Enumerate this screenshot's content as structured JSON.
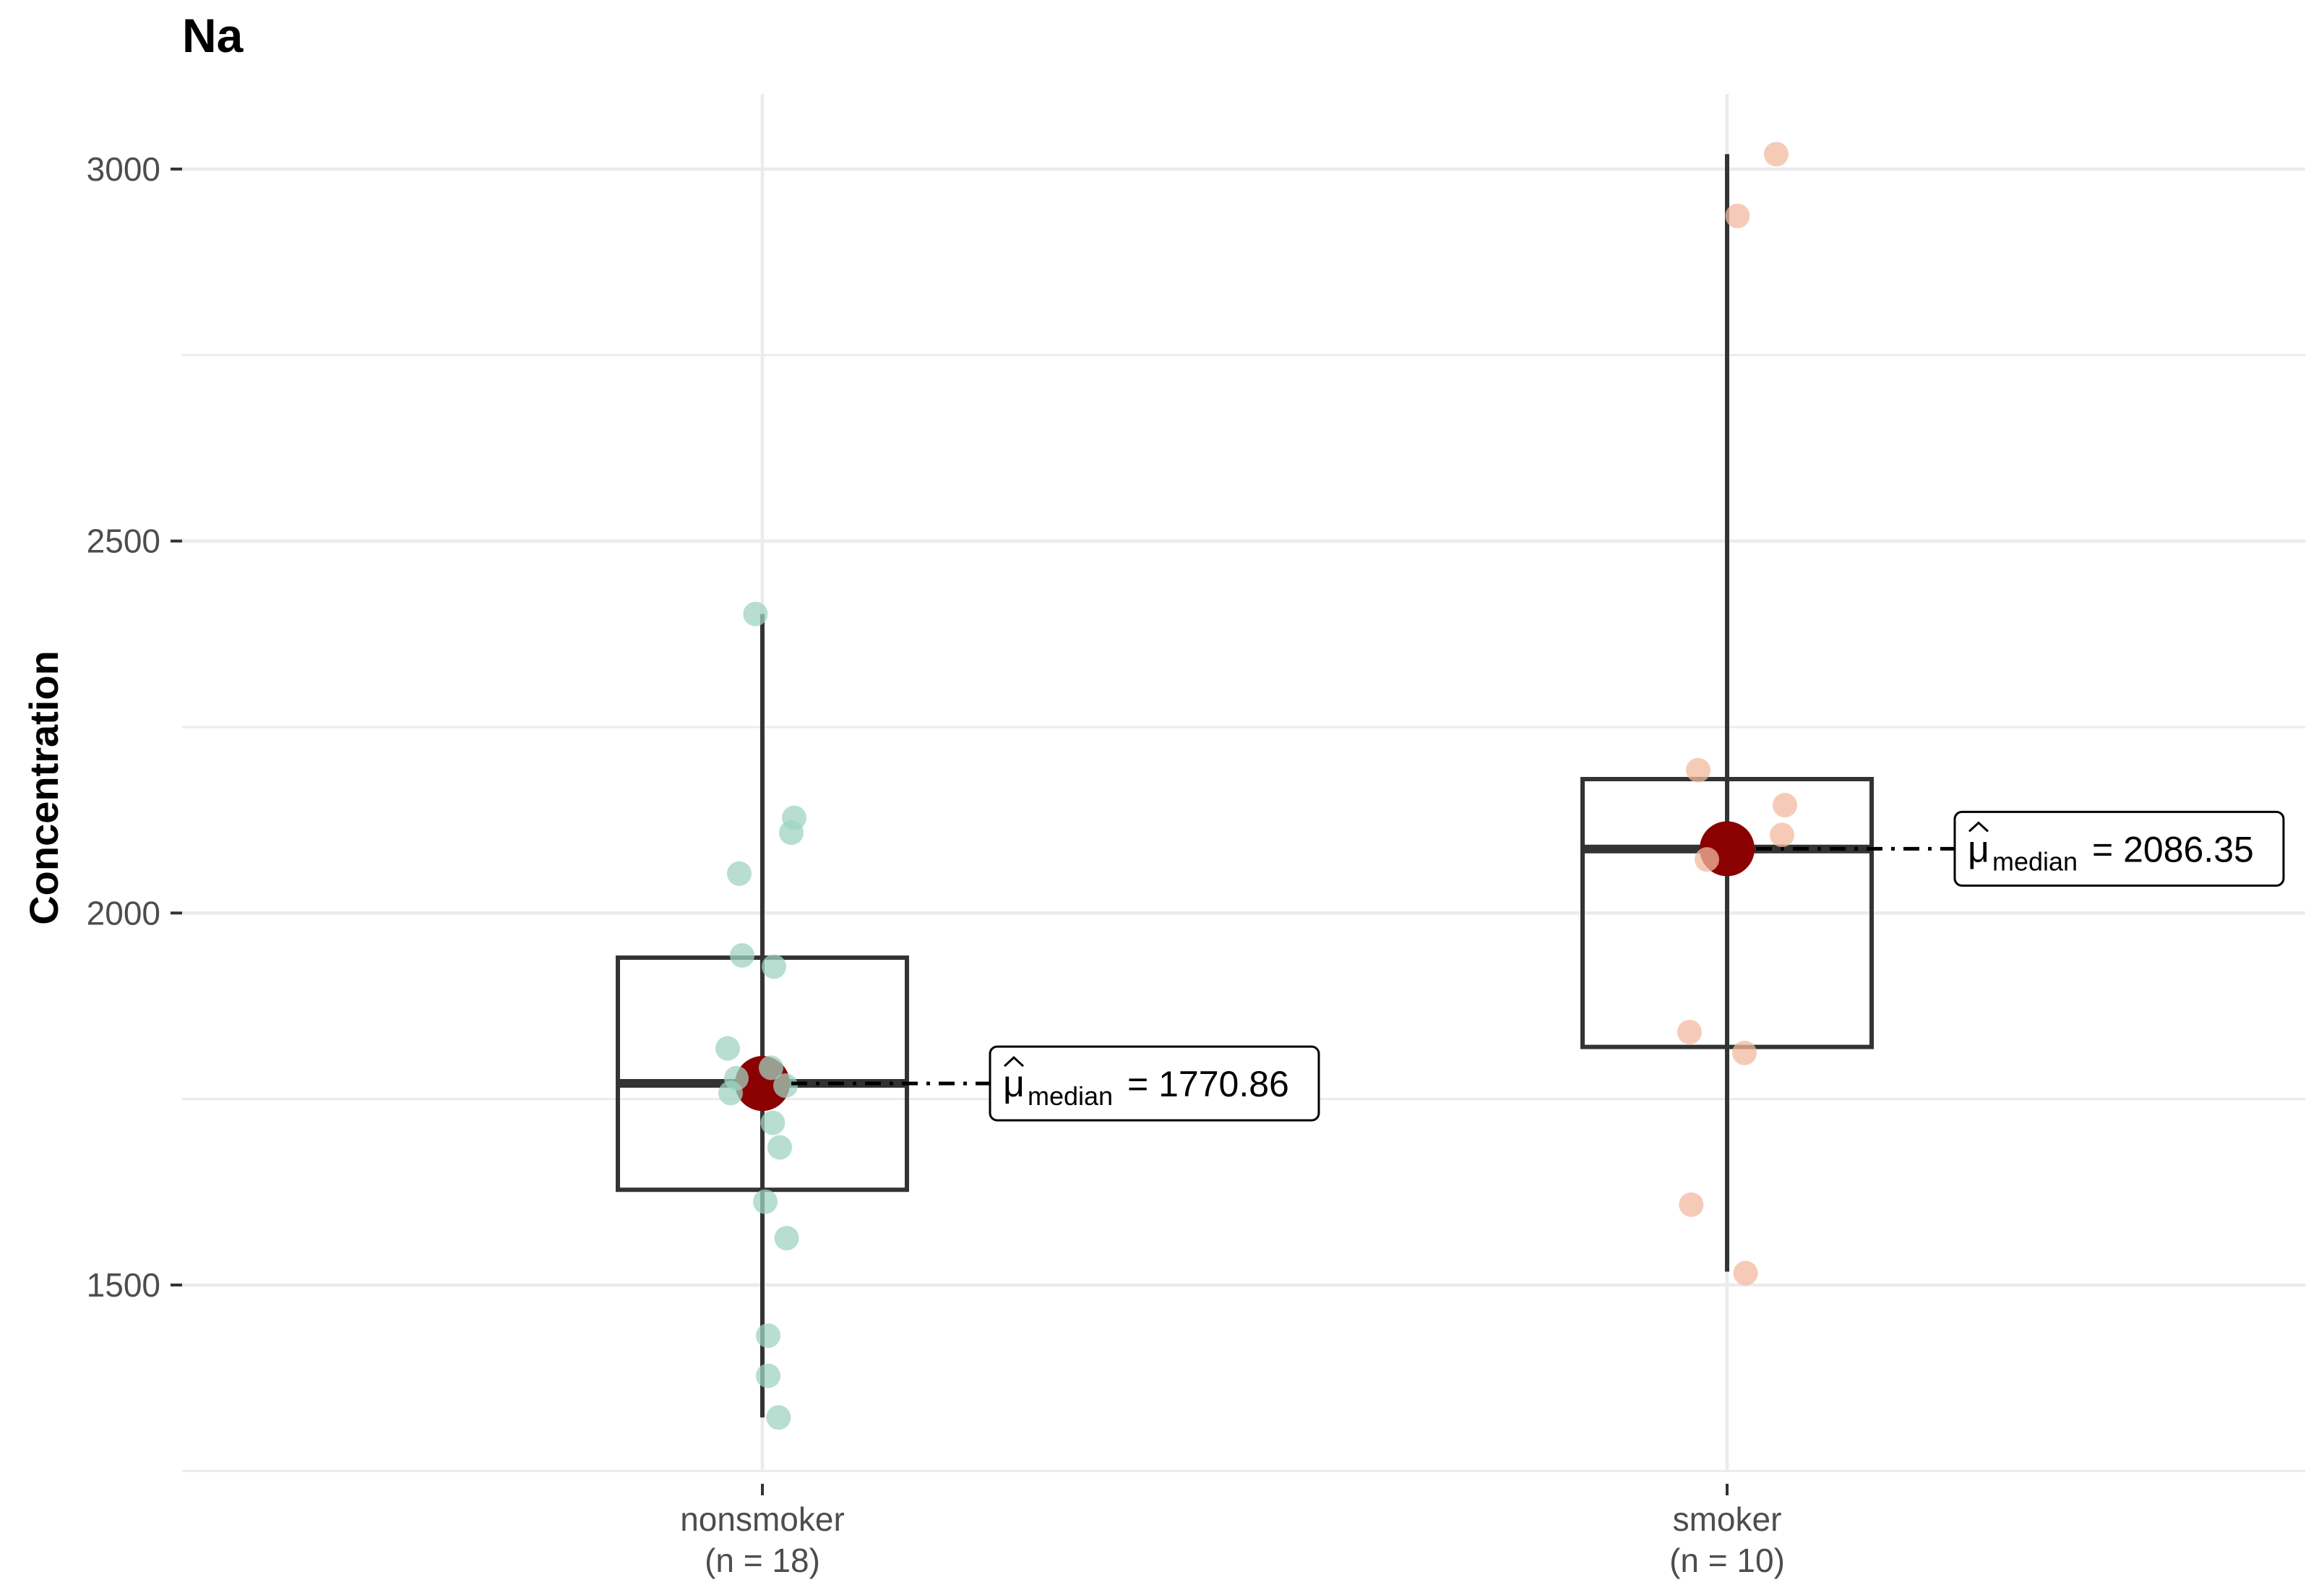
{
  "chart_data": {
    "type": "box",
    "title": "Na",
    "xlabel": "",
    "ylabel": "Concentration",
    "ylim": [
      1250,
      3100
    ],
    "yticks": [
      1500,
      2000,
      2500,
      3000
    ],
    "grid": true,
    "categories": [
      {
        "name": "nonsmoker",
        "n_label": "(n = 18)",
        "color": "#9fd3c1",
        "box": {
          "q1": 1628,
          "median": 1771,
          "q3": 1940,
          "whisker_low": 1322,
          "whisker_high": 2402
        },
        "median_point": 1770.86,
        "annotation": {
          "symbol": "μ",
          "subscript": "median",
          "value_text": "= 1770.86"
        },
        "points": [
          2402,
          2128,
          2108,
          2053,
          1943,
          1928,
          1818,
          1792,
          1778,
          1768,
          1758,
          1718,
          1685,
          1612,
          1563,
          1432,
          1378,
          1322
        ]
      },
      {
        "name": "smoker",
        "n_label": "(n = 10)",
        "color": "#f2b9a0",
        "box": {
          "q1": 1820,
          "median": 2086,
          "q3": 2180,
          "whisker_low": 1518,
          "whisker_high": 3020
        },
        "median_point": 2086.35,
        "annotation": {
          "symbol": "μ",
          "subscript": "median",
          "value_text": "= 2086.35"
        },
        "points": [
          3020,
          2937,
          2192,
          2145,
          2105,
          2072,
          1840,
          1812,
          1608,
          1516
        ]
      }
    ]
  },
  "colors": {
    "median_point": "#8b0000",
    "box_stroke": "#333333",
    "grid": "#ebebeb",
    "axis_text": "#4d4d4d"
  }
}
